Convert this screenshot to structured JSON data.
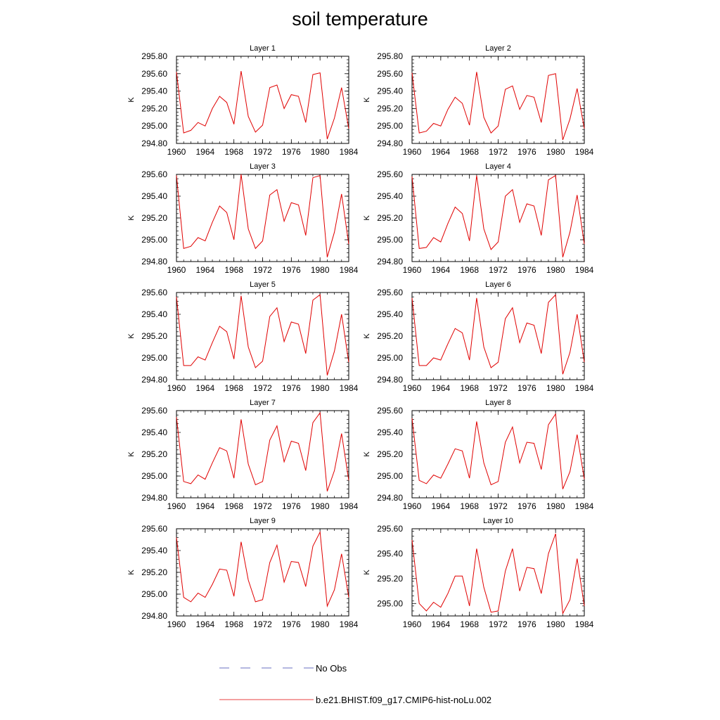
{
  "title": "soil temperature",
  "legend": {
    "entries": [
      {
        "label": "No Obs",
        "color": "#6a72c0",
        "style": "dashed"
      },
      {
        "label": "b.e21.BHIST.f09_g17.CMIP6-hist-noLu.002",
        "color": "#e00000",
        "style": "solid"
      }
    ]
  },
  "chart_data": [
    {
      "type": "line",
      "title": "Layer 1",
      "ylabel": "K",
      "xlim": [
        1960,
        1984
      ],
      "ylim": [
        294.8,
        295.8
      ],
      "xticks": [
        "1960",
        "1964",
        "1968",
        "1972",
        "1976",
        "1980",
        "1984"
      ],
      "yticks": [
        "294.80",
        "295.00",
        "295.20",
        "295.40",
        "295.60",
        "295.80"
      ],
      "x": [
        1960,
        1961,
        1962,
        1963,
        1964,
        1965,
        1966,
        1967,
        1968,
        1969,
        1970,
        1971,
        1972,
        1973,
        1974,
        1975,
        1976,
        1977,
        1978,
        1979,
        1980,
        1981,
        1982,
        1983,
        1984
      ],
      "series": [
        {
          "name": "b.e21.BHIST.f09_g17.CMIP6-hist-noLu.002",
          "color": "#e00000",
          "values": [
            295.62,
            294.92,
            294.95,
            295.04,
            295.0,
            295.2,
            295.34,
            295.27,
            295.02,
            295.63,
            295.11,
            294.93,
            295.01,
            295.44,
            295.47,
            295.2,
            295.36,
            295.34,
            295.04,
            295.59,
            295.61,
            294.85,
            295.09,
            295.44,
            294.97
          ]
        }
      ]
    },
    {
      "type": "line",
      "title": "Layer 2",
      "ylabel": "K",
      "xlim": [
        1960,
        1984
      ],
      "ylim": [
        294.8,
        295.8
      ],
      "xticks": [
        "1960",
        "1964",
        "1968",
        "1972",
        "1976",
        "1980",
        "1984"
      ],
      "yticks": [
        "294.80",
        "295.00",
        "295.20",
        "295.40",
        "295.60",
        "295.80"
      ],
      "x": [
        1960,
        1961,
        1962,
        1963,
        1964,
        1965,
        1966,
        1967,
        1968,
        1969,
        1970,
        1971,
        1972,
        1973,
        1974,
        1975,
        1976,
        1977,
        1978,
        1979,
        1980,
        1981,
        1982,
        1983,
        1984
      ],
      "series": [
        {
          "name": "b.e21.BHIST.f09_g17.CMIP6-hist-noLu.002",
          "color": "#e00000",
          "values": [
            295.61,
            294.92,
            294.94,
            295.03,
            295.0,
            295.19,
            295.33,
            295.26,
            295.01,
            295.62,
            295.1,
            294.92,
            295.0,
            295.42,
            295.46,
            295.19,
            295.35,
            295.33,
            295.04,
            295.58,
            295.6,
            294.84,
            295.08,
            295.43,
            294.97
          ]
        }
      ]
    },
    {
      "type": "line",
      "title": "Layer 3",
      "ylabel": "K",
      "xlim": [
        1960,
        1984
      ],
      "ylim": [
        294.8,
        295.6
      ],
      "xticks": [
        "1960",
        "1964",
        "1968",
        "1972",
        "1976",
        "1980",
        "1984"
      ],
      "yticks": [
        "294.80",
        "295.00",
        "295.20",
        "295.40",
        "295.60"
      ],
      "x": [
        1960,
        1961,
        1962,
        1963,
        1964,
        1965,
        1966,
        1967,
        1968,
        1969,
        1970,
        1971,
        1972,
        1973,
        1974,
        1975,
        1976,
        1977,
        1978,
        1979,
        1980,
        1981,
        1982,
        1983,
        1984
      ],
      "series": [
        {
          "name": "b.e21.BHIST.f09_g17.CMIP6-hist-noLu.002",
          "color": "#e00000",
          "values": [
            295.59,
            294.92,
            294.94,
            295.02,
            294.99,
            295.16,
            295.31,
            295.25,
            295.0,
            295.6,
            295.1,
            294.92,
            294.99,
            295.41,
            295.46,
            295.17,
            295.34,
            295.32,
            295.04,
            295.57,
            295.59,
            294.84,
            295.07,
            295.42,
            294.96
          ]
        }
      ]
    },
    {
      "type": "line",
      "title": "Layer 4",
      "ylabel": "K",
      "xlim": [
        1960,
        1984
      ],
      "ylim": [
        294.8,
        295.6
      ],
      "xticks": [
        "1960",
        "1964",
        "1968",
        "1972",
        "1976",
        "1980",
        "1984"
      ],
      "yticks": [
        "294.80",
        "295.00",
        "295.20",
        "295.40",
        "295.60"
      ],
      "x": [
        1960,
        1961,
        1962,
        1963,
        1964,
        1965,
        1966,
        1967,
        1968,
        1969,
        1970,
        1971,
        1972,
        1973,
        1974,
        1975,
        1976,
        1977,
        1978,
        1979,
        1980,
        1981,
        1982,
        1983,
        1984
      ],
      "series": [
        {
          "name": "b.e21.BHIST.f09_g17.CMIP6-hist-noLu.002",
          "color": "#e00000",
          "values": [
            295.58,
            294.92,
            294.93,
            295.02,
            294.98,
            295.15,
            295.3,
            295.24,
            294.99,
            295.59,
            295.1,
            294.91,
            294.98,
            295.4,
            295.46,
            295.16,
            295.33,
            295.31,
            295.04,
            295.55,
            295.59,
            294.84,
            295.07,
            295.41,
            294.96
          ]
        }
      ]
    },
    {
      "type": "line",
      "title": "Layer 5",
      "ylabel": "K",
      "xlim": [
        1960,
        1984
      ],
      "ylim": [
        294.8,
        295.6
      ],
      "xticks": [
        "1960",
        "1964",
        "1968",
        "1972",
        "1976",
        "1980",
        "1984"
      ],
      "yticks": [
        "294.80",
        "295.00",
        "295.20",
        "295.40",
        "295.60"
      ],
      "x": [
        1960,
        1961,
        1962,
        1963,
        1964,
        1965,
        1966,
        1967,
        1968,
        1969,
        1970,
        1971,
        1972,
        1973,
        1974,
        1975,
        1976,
        1977,
        1978,
        1979,
        1980,
        1981,
        1982,
        1983,
        1984
      ],
      "series": [
        {
          "name": "b.e21.BHIST.f09_g17.CMIP6-hist-noLu.002",
          "color": "#e00000",
          "values": [
            295.56,
            294.93,
            294.93,
            295.01,
            294.98,
            295.14,
            295.29,
            295.24,
            294.99,
            295.57,
            295.1,
            294.91,
            294.97,
            295.38,
            295.46,
            295.15,
            295.33,
            295.31,
            295.04,
            295.53,
            295.58,
            294.84,
            295.06,
            295.4,
            294.96
          ]
        }
      ]
    },
    {
      "type": "line",
      "title": "Layer 6",
      "ylabel": "K",
      "xlim": [
        1960,
        1984
      ],
      "ylim": [
        294.8,
        295.6
      ],
      "xticks": [
        "1960",
        "1964",
        "1968",
        "1972",
        "1976",
        "1980",
        "1984"
      ],
      "yticks": [
        "294.80",
        "295.00",
        "295.20",
        "295.40",
        "295.60"
      ],
      "x": [
        1960,
        1961,
        1962,
        1963,
        1964,
        1965,
        1966,
        1967,
        1968,
        1969,
        1970,
        1971,
        1972,
        1973,
        1974,
        1975,
        1976,
        1977,
        1978,
        1979,
        1980,
        1981,
        1982,
        1983,
        1984
      ],
      "series": [
        {
          "name": "b.e21.BHIST.f09_g17.CMIP6-hist-noLu.002",
          "color": "#e00000",
          "values": [
            295.55,
            294.93,
            294.93,
            295.0,
            294.98,
            295.13,
            295.27,
            295.23,
            294.98,
            295.55,
            295.1,
            294.91,
            294.96,
            295.36,
            295.46,
            295.14,
            295.32,
            295.3,
            295.04,
            295.51,
            295.58,
            294.85,
            295.05,
            295.4,
            294.96
          ]
        }
      ]
    },
    {
      "type": "line",
      "title": "Layer 7",
      "ylabel": "K",
      "xlim": [
        1960,
        1984
      ],
      "ylim": [
        294.8,
        295.6
      ],
      "xticks": [
        "1960",
        "1964",
        "1968",
        "1972",
        "1976",
        "1980",
        "1984"
      ],
      "yticks": [
        "294.80",
        "295.00",
        "295.20",
        "295.40",
        "295.60"
      ],
      "x": [
        1960,
        1961,
        1962,
        1963,
        1964,
        1965,
        1966,
        1967,
        1968,
        1969,
        1970,
        1971,
        1972,
        1973,
        1974,
        1975,
        1976,
        1977,
        1978,
        1979,
        1980,
        1981,
        1982,
        1983,
        1984
      ],
      "series": [
        {
          "name": "b.e21.BHIST.f09_g17.CMIP6-hist-noLu.002",
          "color": "#e00000",
          "values": [
            295.54,
            294.95,
            294.93,
            295.01,
            294.97,
            295.12,
            295.26,
            295.23,
            294.98,
            295.52,
            295.11,
            294.92,
            294.95,
            295.33,
            295.46,
            295.13,
            295.32,
            295.3,
            295.05,
            295.49,
            295.58,
            294.86,
            295.05,
            295.39,
            294.96
          ]
        }
      ]
    },
    {
      "type": "line",
      "title": "Layer 8",
      "ylabel": "K",
      "xlim": [
        1960,
        1984
      ],
      "ylim": [
        294.8,
        295.6
      ],
      "xticks": [
        "1960",
        "1964",
        "1968",
        "1972",
        "1976",
        "1980",
        "1984"
      ],
      "yticks": [
        "294.80",
        "295.00",
        "295.20",
        "295.40",
        "295.60"
      ],
      "x": [
        1960,
        1961,
        1962,
        1963,
        1964,
        1965,
        1966,
        1967,
        1968,
        1969,
        1970,
        1971,
        1972,
        1973,
        1974,
        1975,
        1976,
        1977,
        1978,
        1979,
        1980,
        1981,
        1982,
        1983,
        1984
      ],
      "series": [
        {
          "name": "b.e21.BHIST.f09_g17.CMIP6-hist-noLu.002",
          "color": "#e00000",
          "values": [
            295.53,
            294.96,
            294.93,
            295.01,
            294.98,
            295.11,
            295.25,
            295.23,
            294.98,
            295.5,
            295.12,
            294.92,
            294.95,
            295.31,
            295.45,
            295.12,
            295.31,
            295.3,
            295.06,
            295.47,
            295.57,
            294.88,
            295.04,
            295.38,
            294.97
          ]
        }
      ]
    },
    {
      "type": "line",
      "title": "Layer 9",
      "ylabel": "K",
      "xlim": [
        1960,
        1984
      ],
      "ylim": [
        294.8,
        295.6
      ],
      "xticks": [
        "1960",
        "1964",
        "1968",
        "1972",
        "1976",
        "1980",
        "1984"
      ],
      "yticks": [
        "294.80",
        "295.00",
        "295.20",
        "295.40",
        "295.60"
      ],
      "x": [
        1960,
        1961,
        1962,
        1963,
        1964,
        1965,
        1966,
        1967,
        1968,
        1969,
        1970,
        1971,
        1972,
        1973,
        1974,
        1975,
        1976,
        1977,
        1978,
        1979,
        1980,
        1981,
        1982,
        1983,
        1984
      ],
      "series": [
        {
          "name": "b.e21.BHIST.f09_g17.CMIP6-hist-noLu.002",
          "color": "#e00000",
          "values": [
            295.52,
            294.97,
            294.93,
            295.01,
            294.97,
            295.09,
            295.23,
            295.22,
            294.98,
            295.48,
            295.13,
            294.93,
            294.95,
            295.29,
            295.45,
            295.11,
            295.3,
            295.29,
            295.07,
            295.44,
            295.57,
            294.89,
            295.04,
            295.37,
            294.97
          ]
        }
      ]
    },
    {
      "type": "line",
      "title": "Layer 10",
      "ylabel": "K",
      "xlim": [
        1960,
        1984
      ],
      "ylim": [
        294.9,
        295.6
      ],
      "xticks": [
        "1960",
        "1964",
        "1968",
        "1972",
        "1976",
        "1980",
        "1984"
      ],
      "yticks": [
        "295.00",
        "295.20",
        "295.40",
        "295.60"
      ],
      "x": [
        1960,
        1961,
        1962,
        1963,
        1964,
        1965,
        1966,
        1967,
        1968,
        1969,
        1970,
        1971,
        1972,
        1973,
        1974,
        1975,
        1976,
        1977,
        1978,
        1979,
        1980,
        1981,
        1982,
        1983,
        1984
      ],
      "series": [
        {
          "name": "b.e21.BHIST.f09_g17.CMIP6-hist-noLu.002",
          "color": "#e00000",
          "values": [
            295.51,
            295.0,
            294.94,
            295.01,
            294.97,
            295.08,
            295.22,
            295.22,
            294.98,
            295.44,
            295.13,
            294.93,
            294.94,
            295.26,
            295.44,
            295.1,
            295.29,
            295.28,
            295.08,
            295.4,
            295.56,
            294.92,
            295.03,
            295.36,
            294.98
          ]
        }
      ]
    }
  ]
}
